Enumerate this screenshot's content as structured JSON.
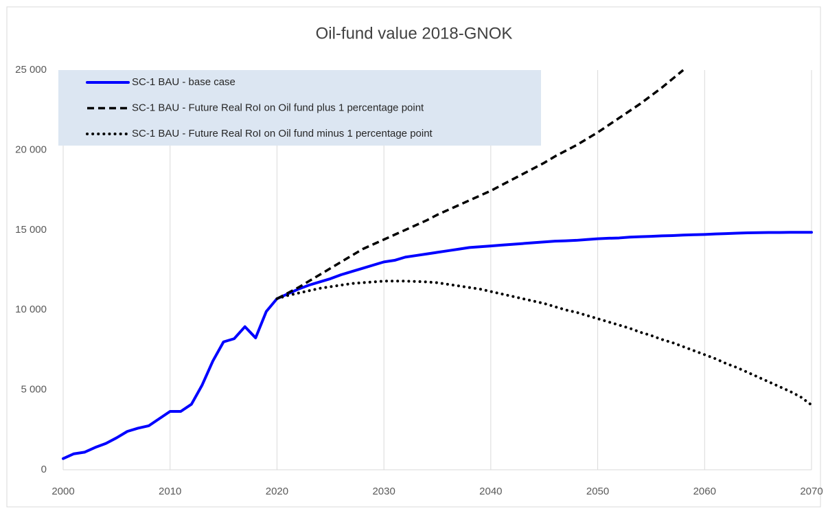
{
  "chart_data": {
    "type": "line",
    "title": "Oil-fund value 2018-GNOK",
    "x": [
      2000,
      2001,
      2002,
      2003,
      2004,
      2005,
      2006,
      2007,
      2008,
      2009,
      2010,
      2011,
      2012,
      2013,
      2014,
      2015,
      2016,
      2017,
      2018,
      2019,
      2020,
      2021,
      2022,
      2023,
      2024,
      2025,
      2026,
      2027,
      2028,
      2029,
      2030,
      2031,
      2032,
      2033,
      2034,
      2035,
      2036,
      2037,
      2038,
      2039,
      2040,
      2041,
      2042,
      2043,
      2044,
      2045,
      2046,
      2047,
      2048,
      2049,
      2050,
      2051,
      2052,
      2053,
      2054,
      2055,
      2056,
      2057,
      2058,
      2059,
      2060,
      2061,
      2062,
      2063,
      2064,
      2065,
      2066,
      2067,
      2068,
      2069,
      2070
    ],
    "series": [
      {
        "name": "SC-1 BAU - base case",
        "color": "#0000ff",
        "style": "solid",
        "values": [
          700,
          1000,
          1100,
          1400,
          1650,
          2000,
          2400,
          2600,
          2750,
          3200,
          3650,
          3650,
          4100,
          5300,
          6800,
          8000,
          8200,
          8950,
          8250,
          9900,
          10700,
          11000,
          11300,
          11550,
          11750,
          11950,
          12200,
          12400,
          12600,
          12800,
          13000,
          13100,
          13300,
          13400,
          13500,
          13600,
          13700,
          13800,
          13900,
          13950,
          14000,
          14050,
          14100,
          14150,
          14200,
          14250,
          14300,
          14320,
          14350,
          14400,
          14450,
          14480,
          14500,
          14550,
          14580,
          14600,
          14630,
          14650,
          14680,
          14700,
          14720,
          14750,
          14770,
          14800,
          14820,
          14830,
          14840,
          14840,
          14850,
          14850,
          14850
        ]
      },
      {
        "name": "SC-1 BAU - Future Real RoI on Oil fund plus 1 percentage point",
        "color": "#000000",
        "style": "dashed",
        "values": [
          null,
          null,
          null,
          null,
          null,
          null,
          null,
          null,
          null,
          null,
          null,
          null,
          null,
          null,
          null,
          null,
          null,
          null,
          null,
          null,
          10700,
          11050,
          11400,
          11800,
          12200,
          12600,
          13000,
          13400,
          13800,
          14100,
          14400,
          14700,
          15000,
          15300,
          15600,
          15950,
          16250,
          16550,
          16850,
          17150,
          17450,
          17800,
          18150,
          18500,
          18850,
          19200,
          19600,
          19950,
          20300,
          20700,
          21100,
          21550,
          22000,
          22450,
          22900,
          23400,
          23900,
          24450,
          25000,
          null,
          null,
          null,
          null,
          null,
          null,
          null,
          null,
          null,
          null,
          null,
          null
        ]
      },
      {
        "name": "SC-1 BAU - Future Real RoI on Oil fund minus 1 percentage point",
        "color": "#000000",
        "style": "dotted",
        "values": [
          null,
          null,
          null,
          null,
          null,
          null,
          null,
          null,
          null,
          null,
          null,
          null,
          null,
          null,
          null,
          null,
          null,
          null,
          null,
          null,
          10700,
          10900,
          11050,
          11200,
          11350,
          11450,
          11550,
          11650,
          11700,
          11750,
          11800,
          11800,
          11800,
          11780,
          11750,
          11700,
          11600,
          11500,
          11400,
          11300,
          11150,
          11000,
          10850,
          10700,
          10550,
          10400,
          10200,
          10000,
          9850,
          9650,
          9450,
          9250,
          9050,
          8850,
          8600,
          8400,
          8150,
          7950,
          7700,
          7450,
          7200,
          6950,
          6650,
          6400,
          6100,
          5800,
          5500,
          5200,
          4900,
          4550,
          4050
        ]
      }
    ],
    "xlim": [
      2000,
      2070
    ],
    "xticks": [
      2000,
      2010,
      2020,
      2030,
      2040,
      2050,
      2060,
      2070
    ],
    "ylim": [
      0,
      25000
    ],
    "yticks": [
      0,
      {
        "value": 5000,
        "label": "5 000"
      },
      {
        "value": 10000,
        "label": "10 000"
      },
      {
        "value": 15000,
        "label": "15 000"
      },
      {
        "value": 20000,
        "label": "20 000"
      },
      {
        "value": 25000,
        "label": "25 000"
      }
    ],
    "xgrid": true,
    "ygrid": false,
    "legend": "top-left",
    "legend_background": "#dce6f2"
  }
}
